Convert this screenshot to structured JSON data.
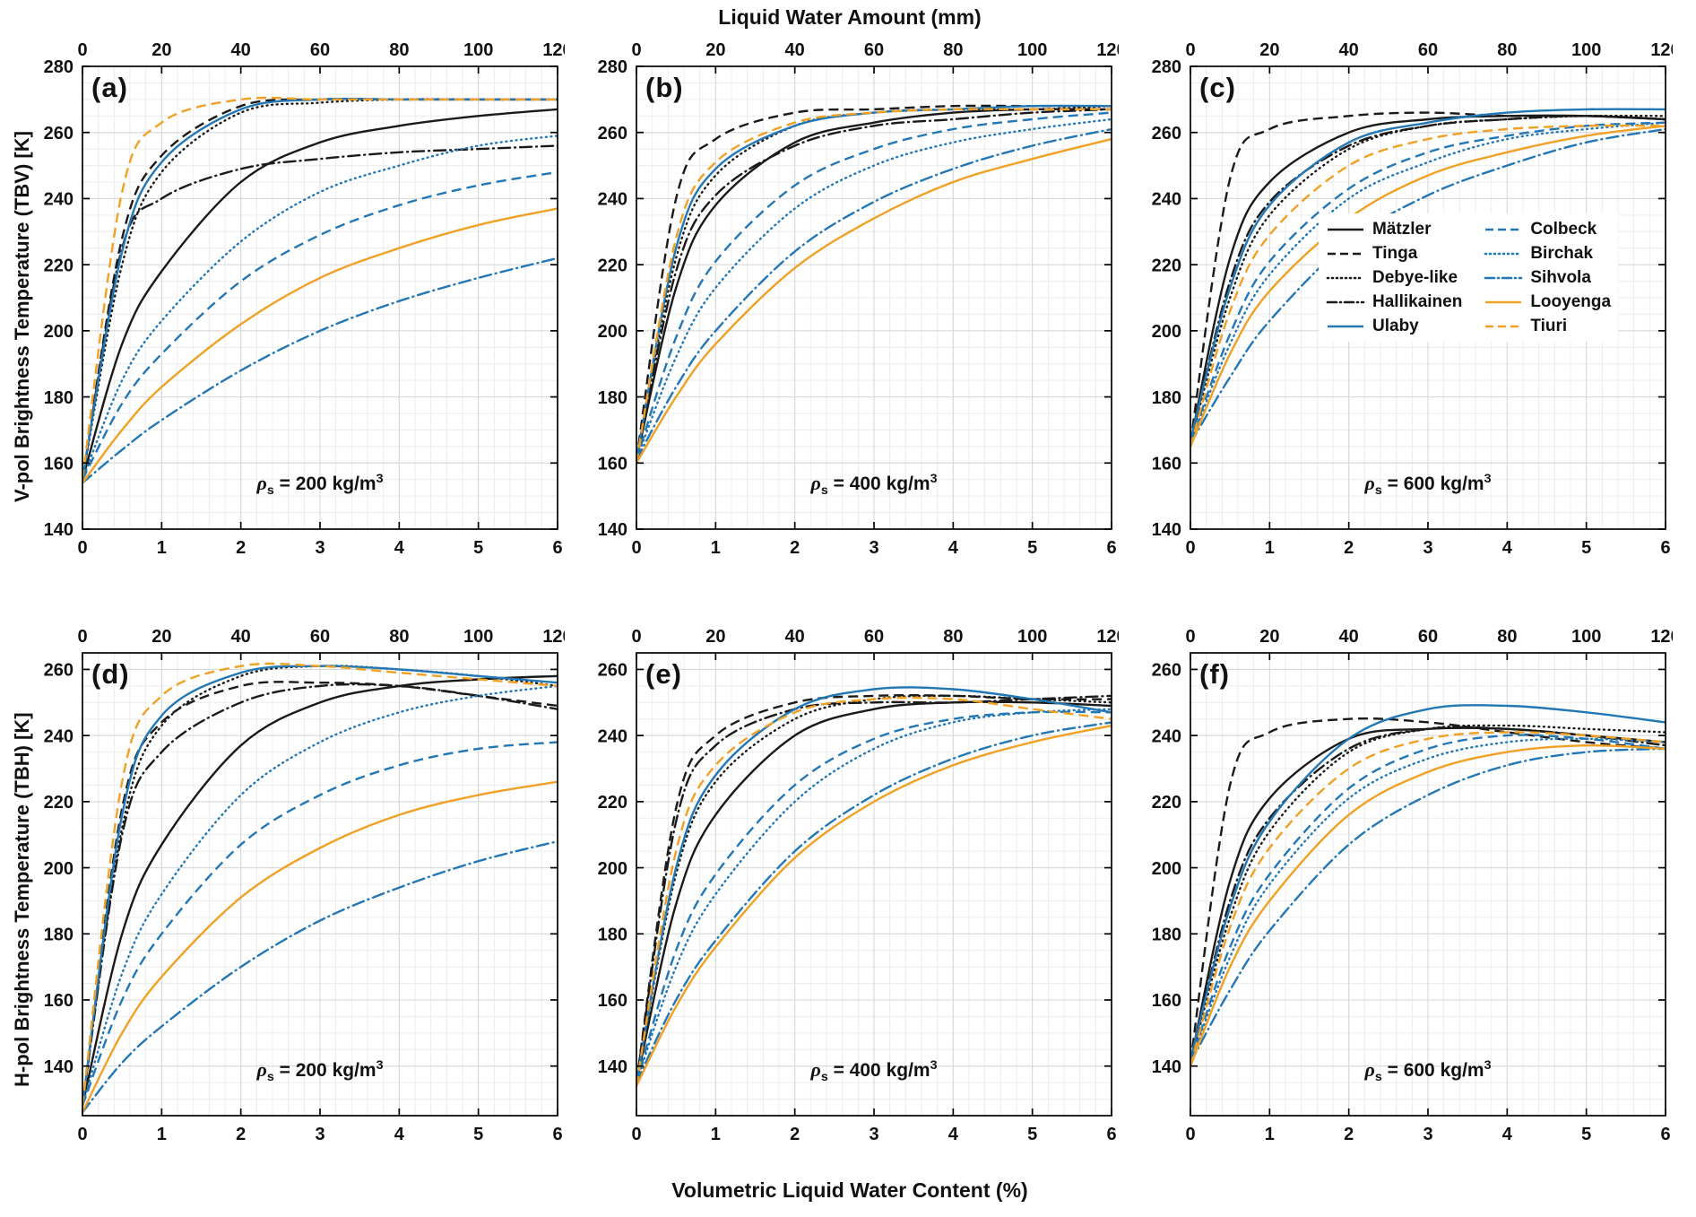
{
  "figure": {
    "top_axis_title": "Liquid Water Amount (mm)",
    "bottom_axis_title": "Volumetric Liquid Water Content (%)",
    "row1_ylabel": "V-pol Brightness Temperature (TBV) [K]",
    "row2_ylabel": "H-pol Brightness Temperature (TBH) [K]"
  },
  "annotation_template": {
    "symbol": "ρ",
    "subscript": "s",
    "equals": " = ",
    "units": " kg/m",
    "exponent": "3"
  },
  "styles": {
    "colors": {
      "black": "#1a1a1a",
      "blue": "#2277b4",
      "orange": "#f0a125"
    },
    "series": {
      "Mätzler": {
        "color": "black",
        "dash": "solid"
      },
      "Tinga": {
        "color": "black",
        "dash": "dashed"
      },
      "Debye-like": {
        "color": "black",
        "dash": "dotted"
      },
      "Hallikainen": {
        "color": "black",
        "dash": "dashdot"
      },
      "Ulaby": {
        "color": "blue",
        "dash": "solid"
      },
      "Colbeck": {
        "color": "blue",
        "dash": "dashed"
      },
      "Birchak": {
        "color": "blue",
        "dash": "dotted"
      },
      "Sihvola": {
        "color": "blue",
        "dash": "dashdot"
      },
      "Looyenga": {
        "color": "orange",
        "dash": "solid"
      },
      "Tiuri": {
        "color": "orange",
        "dash": "dashed"
      }
    }
  },
  "legend": {
    "column1": [
      "Mätzler",
      "Tinga",
      "Debye-like",
      "Hallikainen",
      "Ulaby"
    ],
    "column2": [
      "Colbeck",
      "Birchak",
      "Sihvola",
      "Looyenga",
      "Tiuri"
    ]
  },
  "axes": {
    "x": {
      "lim": [
        0,
        6
      ],
      "ticks": [
        0,
        1,
        2,
        3,
        4,
        5,
        6
      ],
      "minor_step": 0.2
    },
    "top": {
      "lim": [
        0,
        120
      ],
      "ticks": [
        0,
        20,
        40,
        60,
        80,
        100,
        120
      ],
      "per_percent": 20
    },
    "row1_y": {
      "lim": [
        140,
        280
      ],
      "ticks": [
        140,
        160,
        180,
        200,
        220,
        240,
        260,
        280
      ],
      "minor_step": 5
    },
    "row2_y": {
      "lim": [
        125,
        265
      ],
      "ticks": [
        140,
        160,
        180,
        200,
        220,
        240,
        260
      ],
      "minor_step": 5
    }
  },
  "chart_data": [
    {
      "type": "line",
      "id": "a",
      "label": "(a)",
      "density": "200",
      "y_axis": "row1_y",
      "x": [
        0,
        0.5,
        1,
        2,
        3,
        4,
        5,
        6
      ],
      "series": [
        {
          "name": "Mätzler",
          "y": [
            155,
            196,
            218,
            245,
            257,
            262,
            265,
            267
          ]
        },
        {
          "name": "Tinga",
          "y": [
            155,
            228,
            253,
            268,
            270,
            270,
            270,
            270
          ]
        },
        {
          "name": "Debye-like",
          "y": [
            155,
            220,
            248,
            266,
            269,
            270,
            270,
            270
          ]
        },
        {
          "name": "Hallikainen",
          "y": [
            155,
            225,
            240,
            249,
            252,
            254,
            255,
            256
          ]
        },
        {
          "name": "Ulaby",
          "y": [
            155,
            224,
            251,
            267,
            270,
            270,
            270,
            270
          ]
        },
        {
          "name": "Colbeck",
          "y": [
            155,
            178,
            193,
            215,
            229,
            238,
            244,
            248
          ]
        },
        {
          "name": "Birchak",
          "y": [
            155,
            185,
            203,
            227,
            242,
            250,
            256,
            259
          ]
        },
        {
          "name": "Sihvola",
          "y": [
            154,
            164,
            173,
            188,
            200,
            209,
            216,
            222
          ]
        },
        {
          "name": "Looyenga",
          "y": [
            154,
            170,
            183,
            202,
            216,
            225,
            232,
            237
          ]
        },
        {
          "name": "Tiuri",
          "y": [
            155,
            242,
            263,
            270,
            270,
            270,
            270,
            270
          ]
        }
      ]
    },
    {
      "type": "line",
      "id": "b",
      "label": "(b)",
      "density": "400",
      "y_axis": "row1_y",
      "x": [
        0,
        0.5,
        1,
        2,
        3,
        4,
        5,
        6
      ],
      "series": [
        {
          "name": "Mätzler",
          "y": [
            161,
            213,
            238,
            257,
            263,
            266,
            267,
            267
          ]
        },
        {
          "name": "Tinga",
          "y": [
            161,
            240,
            258,
            266,
            267,
            268,
            268,
            268
          ]
        },
        {
          "name": "Debye-like",
          "y": [
            161,
            222,
            247,
            262,
            266,
            267,
            267,
            268
          ]
        },
        {
          "name": "Hallikainen",
          "y": [
            161,
            218,
            241,
            256,
            262,
            264,
            266,
            267
          ]
        },
        {
          "name": "Ulaby",
          "y": [
            161,
            225,
            249,
            262,
            266,
            267,
            268,
            268
          ]
        },
        {
          "name": "Colbeck",
          "y": [
            161,
            198,
            221,
            244,
            255,
            261,
            264,
            266
          ]
        },
        {
          "name": "Birchak",
          "y": [
            161,
            192,
            213,
            237,
            250,
            257,
            261,
            264
          ]
        },
        {
          "name": "Sihvola",
          "y": [
            161,
            183,
            200,
            224,
            239,
            249,
            256,
            261
          ]
        },
        {
          "name": "Looyenga",
          "y": [
            160,
            180,
            196,
            219,
            234,
            245,
            252,
            258
          ]
        },
        {
          "name": "Tiuri",
          "y": [
            160,
            228,
            251,
            263,
            266,
            267,
            267,
            267
          ]
        }
      ]
    },
    {
      "type": "line",
      "id": "c",
      "label": "(c)",
      "density": "600",
      "y_axis": "row1_y",
      "x": [
        0,
        0.5,
        1,
        2,
        3,
        4,
        5,
        6
      ],
      "series": [
        {
          "name": "Mätzler",
          "y": [
            166,
            222,
            245,
            260,
            264,
            265,
            265,
            264
          ]
        },
        {
          "name": "Tinga",
          "y": [
            166,
            246,
            261,
            265,
            266,
            265,
            265,
            264
          ]
        },
        {
          "name": "Debye-like",
          "y": [
            166,
            210,
            235,
            255,
            262,
            264,
            265,
            265
          ]
        },
        {
          "name": "Hallikainen",
          "y": [
            166,
            215,
            239,
            256,
            262,
            264,
            265,
            264
          ]
        },
        {
          "name": "Ulaby",
          "y": [
            167,
            213,
            238,
            257,
            263,
            266,
            267,
            267
          ]
        },
        {
          "name": "Colbeck",
          "y": [
            166,
            199,
            221,
            243,
            254,
            259,
            262,
            263
          ]
        },
        {
          "name": "Birchak",
          "y": [
            166,
            196,
            217,
            240,
            251,
            258,
            261,
            263
          ]
        },
        {
          "name": "Sihvola",
          "y": [
            166,
            186,
            203,
            227,
            241,
            250,
            257,
            261
          ]
        },
        {
          "name": "Looyenga",
          "y": [
            165,
            193,
            212,
            234,
            247,
            254,
            259,
            262
          ]
        },
        {
          "name": "Tiuri",
          "y": [
            165,
            206,
            229,
            250,
            258,
            261,
            262,
            262
          ]
        }
      ]
    },
    {
      "type": "line",
      "id": "d",
      "label": "(d)",
      "density": "200",
      "y_axis": "row2_y",
      "x": [
        0,
        0.5,
        1,
        2,
        3,
        4,
        5,
        6
      ],
      "series": [
        {
          "name": "Mätzler",
          "y": [
            128,
            180,
            207,
            237,
            250,
            255,
            257,
            258
          ]
        },
        {
          "name": "Tinga",
          "y": [
            128,
            218,
            244,
            255,
            256,
            255,
            252,
            249
          ]
        },
        {
          "name": "Debye-like",
          "y": [
            128,
            212,
            243,
            258,
            261,
            260,
            258,
            255
          ]
        },
        {
          "name": "Hallikainen",
          "y": [
            128,
            210,
            235,
            250,
            255,
            255,
            252,
            248
          ]
        },
        {
          "name": "Ulaby",
          "y": [
            128,
            216,
            246,
            259,
            261,
            260,
            258,
            256
          ]
        },
        {
          "name": "Colbeck",
          "y": [
            128,
            160,
            180,
            207,
            222,
            231,
            236,
            238
          ]
        },
        {
          "name": "Birchak",
          "y": [
            128,
            168,
            192,
            222,
            238,
            247,
            252,
            255
          ]
        },
        {
          "name": "Sihvola",
          "y": [
            126,
            141,
            152,
            170,
            184,
            194,
            202,
            208
          ]
        },
        {
          "name": "Looyenga",
          "y": [
            126,
            150,
            167,
            191,
            206,
            216,
            222,
            226
          ]
        },
        {
          "name": "Tiuri",
          "y": [
            128,
            226,
            252,
            261,
            261,
            259,
            257,
            255
          ]
        }
      ]
    },
    {
      "type": "line",
      "id": "e",
      "label": "(e)",
      "density": "400",
      "y_axis": "row2_y",
      "x": [
        0,
        0.5,
        1,
        2,
        3,
        4,
        5,
        6
      ],
      "series": [
        {
          "name": "Mätzler",
          "y": [
            135,
            189,
            216,
            240,
            248,
            250,
            250,
            249
          ]
        },
        {
          "name": "Tinga",
          "y": [
            135,
            218,
            240,
            250,
            252,
            252,
            251,
            251
          ]
        },
        {
          "name": "Debye-like",
          "y": [
            135,
            198,
            226,
            245,
            251,
            252,
            251,
            250
          ]
        },
        {
          "name": "Hallikainen",
          "y": [
            135,
            214,
            237,
            248,
            250,
            250,
            251,
            252
          ]
        },
        {
          "name": "Ulaby",
          "y": [
            135,
            200,
            228,
            248,
            254,
            254,
            251,
            247
          ]
        },
        {
          "name": "Colbeck",
          "y": [
            135,
            175,
            198,
            225,
            239,
            245,
            247,
            247
          ]
        },
        {
          "name": "Birchak",
          "y": [
            135,
            170,
            192,
            220,
            236,
            244,
            247,
            248
          ]
        },
        {
          "name": "Sihvola",
          "y": [
            135,
            160,
            178,
            205,
            222,
            233,
            240,
            244
          ]
        },
        {
          "name": "Looyenga",
          "y": [
            134,
            158,
            176,
            203,
            220,
            231,
            238,
            243
          ]
        },
        {
          "name": "Tiuri",
          "y": [
            134,
            205,
            231,
            247,
            251,
            251,
            248,
            245
          ]
        }
      ]
    },
    {
      "type": "line",
      "id": "f",
      "label": "(f)",
      "density": "600",
      "y_axis": "row2_y",
      "x": [
        0,
        0.5,
        1,
        2,
        3,
        4,
        5,
        6
      ],
      "series": [
        {
          "name": "Mätzler",
          "y": [
            141,
            196,
            221,
            239,
            242,
            242,
            240,
            238
          ]
        },
        {
          "name": "Tinga",
          "y": [
            141,
            225,
            241,
            245,
            244,
            241,
            238,
            236
          ]
        },
        {
          "name": "Debye-like",
          "y": [
            141,
            185,
            211,
            235,
            242,
            243,
            242,
            241
          ]
        },
        {
          "name": "Hallikainen",
          "y": [
            141,
            190,
            215,
            236,
            242,
            242,
            240,
            237
          ]
        },
        {
          "name": "Ulaby",
          "y": [
            142,
            188,
            214,
            239,
            248,
            249,
            247,
            244
          ]
        },
        {
          "name": "Colbeck",
          "y": [
            141,
            176,
            198,
            224,
            236,
            240,
            239,
            236
          ]
        },
        {
          "name": "Birchak",
          "y": [
            141,
            173,
            195,
            221,
            233,
            238,
            239,
            238
          ]
        },
        {
          "name": "Sihvola",
          "y": [
            141,
            163,
            181,
            207,
            222,
            231,
            235,
            236
          ]
        },
        {
          "name": "Looyenga",
          "y": [
            140,
            170,
            190,
            216,
            229,
            235,
            237,
            236
          ]
        },
        {
          "name": "Tiuri",
          "y": [
            140,
            182,
            206,
            230,
            239,
            241,
            240,
            238
          ]
        }
      ]
    }
  ]
}
